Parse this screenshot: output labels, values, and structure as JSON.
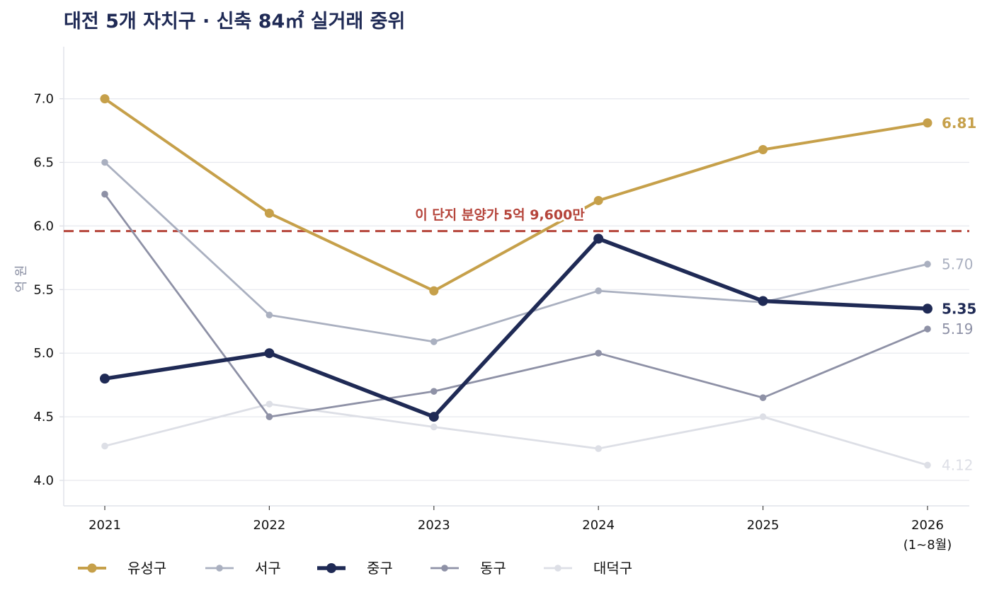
{
  "chart_data": {
    "type": "line",
    "title": "대전 5개 자치구 · 신축 84㎡ 실거래 중위",
    "ylabel": "억 원",
    "xlabel": "",
    "categories": [
      "2021",
      "2022",
      "2023",
      "2024",
      "2025",
      "2026"
    ],
    "category_sublabels": [
      "",
      "",
      "",
      "",
      "",
      "(1~8월)"
    ],
    "yticks": [
      "4.0",
      "4.5",
      "5.0",
      "5.5",
      "6.0",
      "6.5",
      "7.0"
    ],
    "ylim": [
      3.8,
      7.4
    ],
    "grid": "horizontal",
    "legend_position": "bottom",
    "series": [
      {
        "name": "유성구",
        "values": [
          7.0,
          6.1,
          5.49,
          6.2,
          6.6,
          6.81
        ],
        "color": "#c6a04a",
        "end_label": "6.81",
        "emphasis": "bold"
      },
      {
        "name": "서구",
        "values": [
          6.5,
          5.3,
          5.09,
          5.49,
          5.4,
          5.7
        ],
        "color": "#aab0c0",
        "end_label": "5.70",
        "emphasis": "normal"
      },
      {
        "name": "중구",
        "values": [
          4.8,
          5.0,
          4.5,
          5.9,
          5.41,
          5.35
        ],
        "color": "#1f2a55",
        "end_label": "5.35",
        "emphasis": "strong"
      },
      {
        "name": "동구",
        "values": [
          6.25,
          4.5,
          4.7,
          5.0,
          4.65,
          5.19
        ],
        "color": "#8e91a6",
        "end_label": "5.19",
        "emphasis": "normal"
      },
      {
        "name": "대덕구",
        "values": [
          4.27,
          4.6,
          4.42,
          4.25,
          4.5,
          4.12
        ],
        "color": "#dddfe6",
        "end_label": "4.12",
        "emphasis": "light"
      }
    ],
    "reference_line": {
      "value": 5.96,
      "label": "이 단지 분양가 5억 9,600만",
      "color": "#b5443a",
      "style": "dashed"
    }
  }
}
